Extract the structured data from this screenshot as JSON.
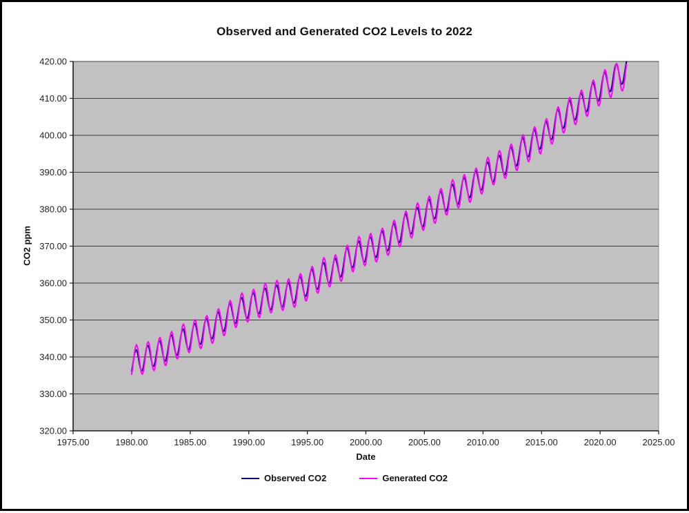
{
  "window": {
    "background": "#ffffff",
    "border_color": "#000000"
  },
  "chart_data": {
    "type": "line",
    "title": "Observed and Generated CO2 Levels to 2022",
    "xlabel": "Date",
    "ylabel": "CO2 ppm",
    "xlim": [
      1975,
      2025
    ],
    "ylim": [
      320,
      420
    ],
    "xticks": [
      "1975.00",
      "1980.00",
      "1985.00",
      "1990.00",
      "1995.00",
      "2000.00",
      "2005.00",
      "2010.00",
      "2015.00",
      "2020.00",
      "2025.00"
    ],
    "yticks": [
      "320.00",
      "330.00",
      "340.00",
      "350.00",
      "360.00",
      "370.00",
      "380.00",
      "390.00",
      "400.00",
      "410.00",
      "420.00"
    ],
    "grid": "horizontal",
    "legend_position": "bottom-center",
    "plot_bg": "#c1c1c1",
    "gridline_color": "#3d3d3d",
    "plot_border_color": "#8f8f8f",
    "axis_color": "#1a1a1a",
    "tick_label_color": "#1f1f1f",
    "x_start": 1980.0,
    "x_end": 2022.25,
    "samples_per_year": 12,
    "annual_means_start_year": 1980,
    "series": [
      {
        "name": "Observed CO2",
        "color": "#000080",
        "line_width": 2,
        "seasonal_amplitude": 3.2,
        "seasonal_phase": 0.12,
        "annual_means": [
          338.9,
          340.1,
          341.4,
          343.0,
          344.6,
          346.1,
          347.4,
          349.2,
          351.6,
          353.1,
          354.4,
          355.6,
          356.4,
          357.1,
          358.8,
          360.8,
          362.6,
          363.7,
          366.7,
          368.4,
          369.5,
          371.1,
          373.2,
          375.8,
          377.5,
          379.8,
          381.9,
          383.8,
          385.6,
          387.4,
          389.9,
          391.6,
          393.9,
          396.5,
          398.6,
          400.8,
          404.2,
          406.6,
          408.5,
          411.4,
          414.2,
          416.4,
          418.0
        ]
      },
      {
        "name": "Generated CO2",
        "color": "#ff00ff",
        "line_width": 2,
        "seasonal_amplitude": 4.2,
        "seasonal_phase": 0.155,
        "annual_means": [
          339.2,
          340.0,
          341.2,
          342.8,
          344.9,
          346.0,
          347.1,
          349.0,
          351.3,
          353.3,
          354.2,
          355.8,
          356.6,
          357.0,
          358.5,
          360.5,
          362.9,
          363.5,
          366.3,
          368.6,
          369.3,
          370.8,
          373.0,
          375.5,
          377.7,
          379.5,
          381.6,
          384.0,
          385.3,
          387.1,
          390.1,
          391.8,
          393.6,
          396.2,
          398.3,
          400.5,
          403.8,
          406.3,
          408.2,
          411.0,
          413.8,
          415.4,
          417.4
        ]
      }
    ]
  }
}
